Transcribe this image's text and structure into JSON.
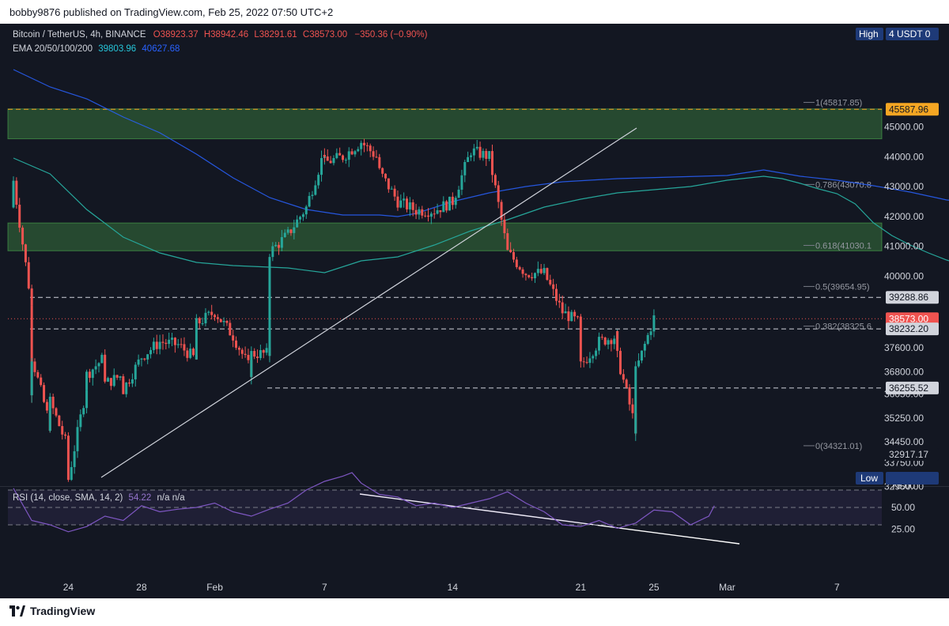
{
  "header": {
    "publish_line": "bobby9876 published on TradingView.com, Feb 25, 2022 07:50 UTC+2"
  },
  "legend": {
    "symbol": "Bitcoin / TetherUS, 4h, BINANCE",
    "open": "O38923.37",
    "high": "H38942.46",
    "low": "L38291.61",
    "close": "C38573.00",
    "change": "−350.36 (−0.90%)",
    "ema_label": "EMA 20/50/100/200",
    "ema_val1": "39803.96",
    "ema_val2": "40627.68"
  },
  "rsi_legend": {
    "label": "RSI (14, close, SMA, 14, 2)",
    "value": "54.22",
    "na": "n/a  n/a"
  },
  "footer": {
    "brand": "TradingView"
  },
  "colors": {
    "bg": "#131722",
    "up": "#26a69a",
    "down": "#ef5350",
    "zone": "#2e5b35",
    "fib": "#787b86",
    "rsi": "#7e57c2"
  },
  "axis": {
    "top_badges": {
      "high_label": "High",
      "currency": "4 USDT 0"
    },
    "low_label": "Low",
    "price_ticks": [
      "45000.00",
      "44000.00",
      "43000.00",
      "42000.00",
      "41000.00",
      "40000.00",
      "37600.00",
      "36800.00",
      "36050.00",
      "35250.00",
      "34450.00",
      "33750.00",
      "32950.00"
    ],
    "rsi_ticks": [
      "75.00",
      "50.00",
      "25.00"
    ],
    "x_ticks": [
      "24",
      "28",
      "Feb",
      "7",
      "14",
      "21",
      "25",
      "Mar",
      "7"
    ]
  },
  "price_badges": [
    {
      "value": "45587.96",
      "bg": "#f5a623",
      "fg": "#131722"
    },
    {
      "value": "39288.86",
      "bg": "#d1d4dc",
      "fg": "#131722"
    },
    {
      "value": "38573.00",
      "bg": "#ef5350",
      "fg": "#ffffff"
    },
    {
      "value": "38232.20",
      "bg": "#d1d4dc",
      "fg": "#131722"
    },
    {
      "value": "36255.52",
      "bg": "#d1d4dc",
      "fg": "#131722"
    },
    {
      "value": "32917.17",
      "bg": "#131722",
      "fg": "#d1d4dc"
    }
  ],
  "fib_labels": [
    "1(45817.85)",
    "0.786(43070.8",
    "0.618(41030.1",
    "0.5(39654.95)",
    "0.382(38325.6",
    "0(34321.01)"
  ],
  "chart_data": {
    "type": "candlestick",
    "symbol": "Bitcoin / TetherUS",
    "interval": "4h",
    "exchange": "BINANCE",
    "period": [
      "Jan 21",
      "Feb 25"
    ],
    "last": {
      "open": 38923.37,
      "high": 38942.46,
      "low": 38291.61,
      "close": 38573.0
    },
    "ylim": [
      32900,
      45900
    ],
    "fibonacci": [
      {
        "level": 1,
        "price": 45817.85
      },
      {
        "level": 0.786,
        "price": 43070.8
      },
      {
        "level": 0.618,
        "price": 41030.1
      },
      {
        "level": 0.5,
        "price": 39654.95
      },
      {
        "level": 0.382,
        "price": 38325.6
      },
      {
        "level": 0,
        "price": 34321.01
      }
    ],
    "zones": [
      {
        "from": 44600,
        "to": 45600
      },
      {
        "from": 40850,
        "to": 41780
      }
    ],
    "horizontal_levels": [
      45587.96,
      39288.86,
      38573.0,
      38232.2,
      36255.52
    ],
    "session_high": 45587.96,
    "session_low": 32917.17,
    "ema": [
      {
        "period": 20,
        "value": 39803.96
      },
      {
        "period": 50,
        "value": 40627.68
      }
    ],
    "rsi": {
      "period": 14,
      "value": 54.22,
      "levels": [
        70,
        50,
        30
      ],
      "ylim": [
        15,
        90
      ]
    },
    "close_path": [
      [
        "Jan 21",
        42300
      ],
      [
        "Jan 21",
        43200
      ],
      [
        "Jan 22",
        39000
      ],
      [
        "Jan 22",
        36200
      ],
      [
        "Jan 22",
        37300
      ],
      [
        "Jan 23",
        35000
      ],
      [
        "Jan 23",
        35800
      ],
      [
        "Jan 24",
        34200
      ],
      [
        "Jan 24",
        33200
      ],
      [
        "Jan 25",
        36300
      ],
      [
        "Jan 25",
        36700
      ],
      [
        "Jan 26",
        37300
      ],
      [
        "Jan 26",
        36400
      ],
      [
        "Jan 27",
        36700
      ],
      [
        "Jan 27",
        36200
      ],
      [
        "Jan 28",
        37300
      ],
      [
        "Jan 29",
        37800
      ],
      [
        "Jan 30",
        37700
      ],
      [
        "Jan 31",
        37200
      ],
      [
        "Jan 31",
        38400
      ],
      [
        "Feb 1",
        38800
      ],
      [
        "Feb 2",
        38000
      ],
      [
        "Feb 3",
        36800
      ],
      [
        "Feb 3",
        37400
      ],
      [
        "Feb 4",
        37400
      ],
      [
        "Feb 4",
        40800
      ],
      [
        "Feb 5",
        41400
      ],
      [
        "Feb 6",
        42300
      ],
      [
        "Feb 7",
        44200
      ],
      [
        "Feb 7",
        43800
      ],
      [
        "Feb 8",
        44000
      ],
      [
        "Feb 9",
        44500
      ],
      [
        "Feb 10",
        43900
      ],
      [
        "Feb 10",
        43500
      ],
      [
        "Feb 11",
        42500
      ],
      [
        "Feb 12",
        42200
      ],
      [
        "Feb 13",
        42200
      ],
      [
        "Feb 14",
        42500
      ],
      [
        "Feb 15",
        44200
      ],
      [
        "Feb 16",
        44000
      ],
      [
        "Feb 17",
        40800
      ],
      [
        "Feb 18",
        40100
      ],
      [
        "Feb 19",
        40100
      ],
      [
        "Feb 20",
        38800
      ],
      [
        "Feb 21",
        38400
      ],
      [
        "Feb 21",
        37000
      ],
      [
        "Feb 22",
        37800
      ],
      [
        "Feb 23",
        38000
      ],
      [
        "Feb 23",
        37300
      ],
      [
        "Feb 24",
        34900
      ],
      [
        "Feb 24",
        36800
      ],
      [
        "Feb 25",
        38600
      ]
    ]
  }
}
